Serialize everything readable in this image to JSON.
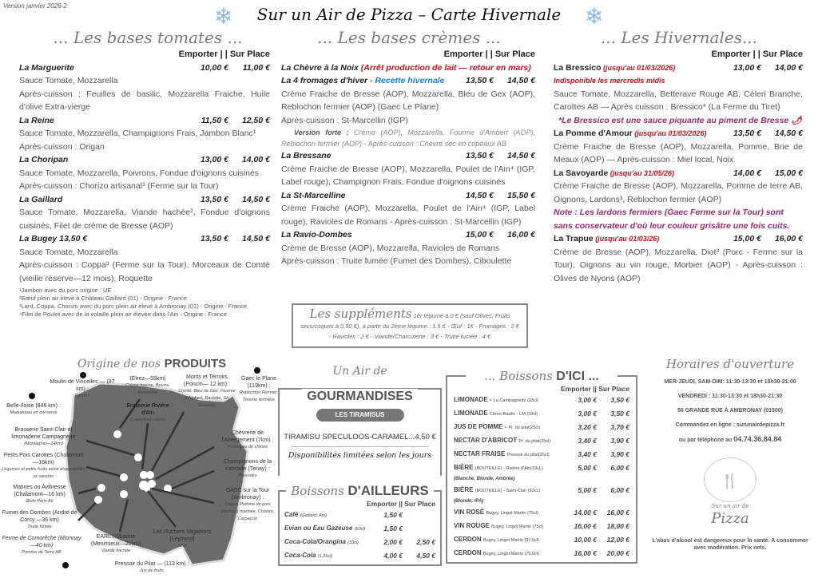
{
  "version": "Version janvier 2026-2",
  "title": "Sur un Air de Pizza – Carte Hivernale",
  "price_header": "Emporter | | Sur Place",
  "tomates": {
    "heading": "... Les bases tomates ...",
    "items": [
      {
        "name": "La Marguerite",
        "prices": [
          "10,00 €",
          "11,00 €"
        ],
        "lines": [
          "Sauce Tomate, Mozzarella",
          "Après-cuisson : Feuilles de basilic, Mozzarella Fraiche, Huile d'olive Extra-vierge"
        ]
      },
      {
        "name": "La Reine",
        "prices": [
          "11,50 €",
          "12,50 €"
        ],
        "lines": [
          "Sauce Tomate, Mozzarella, Champignons Frais, Jambon Blanc¹",
          "Après-cuisson : Origan"
        ]
      },
      {
        "name": "La Choripan",
        "prices": [
          "13,00 €",
          "14,00 €"
        ],
        "lines": [
          "Sauce Tomate, Mozzarella, Poivrons, Fondue d'oignons cuisinés",
          "Après-cuisson : Chorizo artisanal³ (Ferme sur la Tour)"
        ]
      },
      {
        "name": "La Gaillard",
        "prices": [
          "13,50 €",
          "14,50 €"
        ],
        "lines": [
          "Sauce Tomate, Mozzarella, Viande hachée², Fondue d'oignons cuisinés, Filet de crème de Bresse (AOP)"
        ]
      },
      {
        "name": "La Bugey 13,50 €",
        "prices": [
          "13,50 €",
          "14,50 €"
        ],
        "lines": [
          "Sauce Tomate, Mozzarella",
          "Après-cuisson : Coppa³ (Ferme sur la Tour), Morceaux de Comté (vieille réserve—12 mois), Roquette"
        ]
      }
    ],
    "footnotes": [
      "¹Jambon avec du porc origine : UE",
      "²Bœuf plein air élevé à Château Gaillard (01) - Origine - France",
      "³Lard, Coppa, Chorizo avec du porc plein air élevé à Ambronay (01) - Origine : France",
      "⁴Filet de Poulet avec de la volaille plein air élevée dans l'Ain - Origine : France"
    ]
  },
  "cremes": {
    "heading": "... Les bases crèmes ...",
    "items": [
      {
        "name": "La Chèvre à la Noix",
        "note": "(Arrêt production de lait — retour en mars)",
        "note_style": "red",
        "prices": [
          "",
          ""
        ],
        "lines": []
      },
      {
        "name": "La 4 fromages d'hiver",
        "note": "- Recette hivernale",
        "note_style": "blue",
        "prices": [
          "13,50 €",
          "14,50 €"
        ],
        "lines": [
          "Crème Fraiche de Bresse (AOP), Mozzarella, Bleu de Gex (AOP), Reblochon fermier (AOP) (Gaec Le Plane)",
          "Après-cuisson :  St-Marcellin (IGP)"
        ],
        "variant_label": "Version forte :",
        "variant": "Crème (AOP), Mozzarella, Fourme d'Ambert (AOP), Reblochon fermier (AOP) - Après-cuisson : Chèvre sec en copeaux AB"
      },
      {
        "name": "La Bressane",
        "prices": [
          "13,50 €",
          "14,50 €"
        ],
        "lines": [
          "Crème Fraiche de Bresse (AOP),  Mozzarella, Poulet de l'Ain⁴ (IGP, Label rouge), Champignon Frais, Fondue d'oignons cuisinés"
        ]
      },
      {
        "name": "La St-Marcelline",
        "prices": [
          "14,50 €",
          "15,50 €"
        ],
        "lines": [
          "Crème Fraiche (AOP),  Mozzarella, Poulet de l'Ain⁴ (IGP, Label rouge), Ravioles de Romans  - Après-cuisson :  St-Marcellin (IGP)"
        ]
      },
      {
        "name": "La Ravio-Dombes",
        "prices": [
          "15,00 €",
          "16,00 €"
        ],
        "lines": [
          "Crème de Bresse (AOP),  Mozzarella, Ravioles de Romans",
          "Après-cuisson : Truite fumée (Fumet des Dombes), Ciboulette"
        ]
      }
    ]
  },
  "hivernales": {
    "heading": "... Les Hivernales...",
    "items": [
      {
        "name": "La Bressico",
        "note": "(jusqu'au 01/03/2026)",
        "prices": [
          "13,00 €",
          "14,00 €"
        ],
        "subnote": "Indisponible les mercredis midis",
        "lines": [
          "Sauce Tomate, Mozzarella, Betterave Rouge AB, Céleri Branche, Carottes AB — Après cuisson : Bressico* (La Ferme du Tiret)"
        ],
        "after": "*Le Bressico est une sauce piquante au piment de Bresse"
      },
      {
        "name": "La Pomme d'Amour",
        "note": "(jusqu'au 01/03/2026)",
        "prices": [
          "13,50 €",
          "14,50 €"
        ],
        "lines": [
          "Crème Fraiche de Bresse (AOP),  Mozzarella, Pomme, Brie de Meaux (AOP) — Après-cuisson :  Miel local, Noix"
        ]
      },
      {
        "name": "La Savoyarde",
        "note": "(jusqu'au 31/05/26)",
        "prices": [
          "14,00 €",
          "15,00 €"
        ],
        "lines": [
          "Crème Fraiche de Bresse (AOP),  Mozzarella, Pomme de terre AB, Oignons, Lardons³, Reblochon fermier (AOP)"
        ],
        "after": "Note : Les lardons fermiers (Gaec Ferme sur la Tour) sont sans conservateur d'où leur couleur grisâtre une fois cuits."
      },
      {
        "name": "La Trapue",
        "note": "(jusqu'au 01/03/26)",
        "prices": [
          "15,00 €",
          "16,00 €"
        ],
        "lines": [
          "Crème de Bresse (AOP), Mozzarella, Diot³ (Porc - Ferme sur la Tour), Oignons au vin rouge,  Morbier (AOP) - Après-cuisson : Olives de Nyons (AOP)"
        ]
      }
    ]
  },
  "supplements": {
    "title": "Les suppléments",
    "text": "1er légume à 0 € (sauf Olives, Fruits secs/coques à 0,50 €), à partir du 2ème légume : 1,5 € - Œuf : 1€ - Fromages : 2 € - Ravioles : 2 € - Viande/Charcuterie : 3 € - Truite fumée : 4 €"
  },
  "map": {
    "title_script": "Origine de nos",
    "title_bold": "PRODUITS",
    "labels": [
      [
        "(Etrez—55km)",
        "Crème fraiche, Beurre, Emmental"
      ],
      [
        "Moulin de Vincelles — (87 km) :",
        "Farines"
      ],
      [
        "Belle-Iloise (846 km) :",
        "Maquereau en conserve"
      ],
      [
        "Brasserie Rivière d'Ain",
        "(Supérieux—6km)"
      ],
      [
        "Monts et Terroirs (Poncin— 12 km) :",
        "Comté, Bleu de Gex, Fourme d'Ambert, Raclette, St-Marcellin"
      ],
      [
        "Gaec le Plane (119km) :",
        "Reblochon Fermier, Tomme fermière"
      ],
      [
        "Brasserie Saint-Clair et limonaderie Campagnette",
        "(Montagnat—24km)"
      ],
      [
        "Chèvrerie de l'Abergement (7km) :",
        "Fromages de chèvre"
      ],
      [
        "Petits Pois Carottes (Cholamont—16km)",
        "Légumes et petits fruits selon disponibilités et saisons"
      ],
      [
        "Matines ou Avibresse (Chalamont—16 km)",
        "Œufs Plein Air"
      ],
      [
        "Champignons de la cascade (Tenay) :",
        "Pleurotes"
      ],
      [
        "Fumet des Dombes (André de Corcy —36 km)",
        "Truite fumée"
      ],
      [
        "GAEC sur la Tour (Ambronay) :",
        "Coppa, Poitrine de porc (lardons) marinée, Chorizo, Carpaccio"
      ],
      [
        "Ferme de Comorêche (Mionnay—40 km)",
        "Pomme de Terre AB"
      ],
      [
        "EARL l'Albarine (Meximieux—20km)",
        "Viande hachée"
      ],
      [
        "Les Ruchers Vagabons (Leyment)",
        "Miel"
      ],
      [
        "Pressoir du Pilat — (113 km) :",
        "Jus de fruits"
      ]
    ]
  },
  "gourmandises": {
    "script": "Un Air de",
    "title": "GOURMANDISES",
    "banner": "LES TIRAMISUS",
    "item": "TIRAMISU SPECULOOS-CARAMEL...4,50 €",
    "note": "Disponibilités limitées selon les jours"
  },
  "ailleurs": {
    "script": "Boissons",
    "title": "D'AILLEURS",
    "header": "Emporter || Sur Place",
    "rows": [
      {
        "name": "Café",
        "detail": "(Gaillard, Ain)",
        "prices": [
          "1,50 €",
          ""
        ]
      },
      {
        "name": "Evian ou Eau Gazeuse",
        "detail": "(50cl)",
        "prices": [
          "1,50 €",
          ""
        ]
      },
      {
        "name": "Coca-Cola/Orangina",
        "detail": "(33cl)",
        "prices": [
          "2,00 €",
          "2,50 €"
        ]
      },
      {
        "name": "Coca-Cola",
        "detail": "(1,25cl)",
        "prices": [
          "4,00 €",
          "4,50 €"
        ]
      }
    ]
  },
  "ici": {
    "script": "... Boissons",
    "title": "D'ICI ...",
    "header": "Emporter || Sur Place",
    "rows": [
      {
        "name": "LIMONADE -",
        "detail": "La Campagnette (33cl)",
        "prices": [
          "3,00 €",
          "3,50 €"
        ]
      },
      {
        "name": "LIMONADE",
        "detail": "Citron-Basilic - LM (33cl)",
        "prices": [
          "3,00 €",
          "3,50 €"
        ]
      },
      {
        "name": "JUS DE POMME -",
        "detail": "Pr. du pilat(25cl)",
        "prices": [
          "3,20 €",
          "3,70 €"
        ]
      },
      {
        "name": "NECTAR D'ABRICOT",
        "detail": "Pr. du pilat(25cl)",
        "prices": [
          "3,40 €",
          "3,90 €"
        ]
      },
      {
        "name": "NECTAR FRAISE",
        "detail": "Pressoir du pilat(25cl)",
        "prices": [
          "3,40 €",
          "3,90 €"
        ]
      },
      {
        "name": "BIÈRE",
        "detail": "(BOUTEILLE) - Rivière d'Ain(33cL)",
        "prices": [
          "5,00 €",
          "6,00 €"
        ],
        "sub": "(Blanche, Blonde, Ambrée)"
      },
      {
        "name": "BIÈRE",
        "detail": "(BOUTEILLE) - Saint-Clair (33cL)",
        "prices": [
          "5,00 €",
          "6,00 €"
        ],
        "sub": "(Blonde, IPA)"
      },
      {
        "name": "VIN ROSÉ",
        "detail": "Bugey, Lingot Martin (75cl)",
        "prices": [
          "14,00 €",
          "16,00 €"
        ]
      },
      {
        "name": "VIN ROUGE",
        "detail": "Bugey, Lingot Martin (75cl)",
        "prices": [
          "16,00 €",
          "18,00 €"
        ]
      },
      {
        "name": "CERDON",
        "detail": "Bugey, Lingot Martin (37,5cl)",
        "prices": [
          "10,00 €",
          "12,00 €"
        ]
      },
      {
        "name": "CERDON",
        "detail": "Bugey, Lingot Martin (75,0cl)",
        "prices": [
          "16,00 €",
          "20,00 €"
        ]
      }
    ]
  },
  "horaires": {
    "title": "Horaires d'ouverture",
    "lines": [
      "MER-JEUDI, SAM-DIM: 11:30-13:30 et 18h30-21:00",
      "VENDREDI : 11:30-13:30 et 18h30-21:30",
      "56 GRANDE  RUE À AMBRONAY (01500)",
      "Commandez en ligne : surunairdepizza.fr"
    ],
    "phone_prefix": "ou par téléphone au",
    "phone": "04.74.36.84.84",
    "logo": [
      "Sur un air de",
      "Pizza"
    ],
    "disclaimer": "L'abus d'alcool est dangereux pour la santé. A consommer avec modération. Prix nets."
  },
  "colors": {
    "red": "#c0121d",
    "blue": "#1f7fd0",
    "purple": "#9b2a6b",
    "snow": "#8ab8ee",
    "map": "#6b6b6b"
  }
}
